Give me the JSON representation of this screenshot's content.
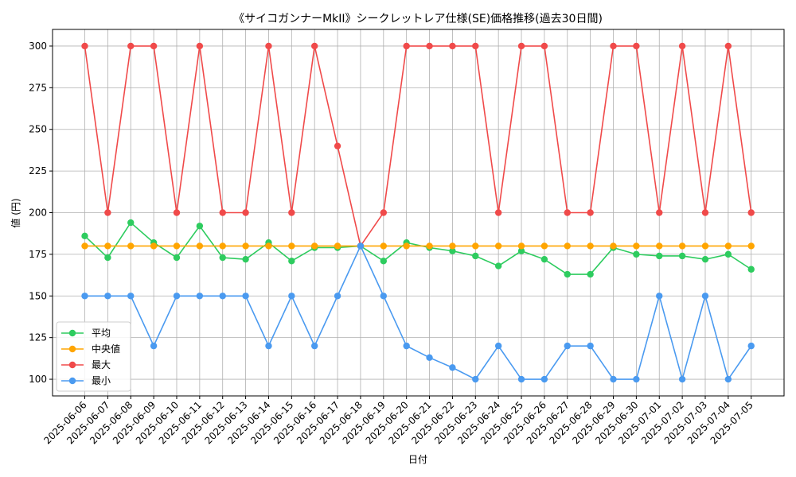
{
  "chart_data": {
    "type": "line",
    "title": "《サイコガンナーMkII》シークレットレア仕様(SE)価格推移(過去30日間)",
    "xlabel": "日付",
    "ylabel": "値 (円)",
    "ylim": [
      90,
      310
    ],
    "yticks": [
      100,
      125,
      150,
      175,
      200,
      225,
      250,
      275,
      300
    ],
    "grid": true,
    "legend_position": "bottom-left",
    "categories": [
      "2025-06-06",
      "2025-06-07",
      "2025-06-08",
      "2025-06-09",
      "2025-06-10",
      "2025-06-11",
      "2025-06-12",
      "2025-06-13",
      "2025-06-14",
      "2025-06-15",
      "2025-06-16",
      "2025-06-17",
      "2025-06-18",
      "2025-06-19",
      "2025-06-20",
      "2025-06-21",
      "2025-06-22",
      "2025-06-23",
      "2025-06-24",
      "2025-06-25",
      "2025-06-26",
      "2025-06-27",
      "2025-06-28",
      "2025-06-29",
      "2025-06-30",
      "2025-07-01",
      "2025-07-02",
      "2025-07-03",
      "2025-07-04",
      "2025-07-05"
    ],
    "series": [
      {
        "name": "平均",
        "color": "#2ecc5f",
        "values": [
          186,
          173,
          194,
          182,
          173,
          192,
          173,
          172,
          182,
          171,
          179,
          179,
          180,
          171,
          182,
          179,
          177,
          174,
          168,
          177,
          172,
          163,
          163,
          179,
          175,
          174,
          174,
          172,
          175,
          166
        ]
      },
      {
        "name": "中央値",
        "color": "#ffa500",
        "values": [
          180,
          180,
          180,
          180,
          180,
          180,
          180,
          180,
          180,
          180,
          180,
          180,
          180,
          180,
          180,
          180,
          180,
          180,
          180,
          180,
          180,
          180,
          180,
          180,
          180,
          180,
          180,
          180,
          180,
          180
        ]
      },
      {
        "name": "最大",
        "color": "#f04a4a",
        "values": [
          300,
          200,
          300,
          300,
          200,
          300,
          200,
          200,
          300,
          200,
          300,
          240,
          180,
          200,
          300,
          300,
          300,
          300,
          200,
          300,
          300,
          200,
          200,
          300,
          300,
          200,
          300,
          200,
          300,
          200
        ]
      },
      {
        "name": "最小",
        "color": "#4a9af0",
        "values": [
          150,
          150,
          150,
          120,
          150,
          150,
          150,
          150,
          120,
          150,
          120,
          150,
          180,
          150,
          120,
          113,
          107,
          100,
          120,
          100,
          100,
          120,
          120,
          100,
          100,
          150,
          100,
          150,
          100,
          120
        ]
      }
    ]
  }
}
